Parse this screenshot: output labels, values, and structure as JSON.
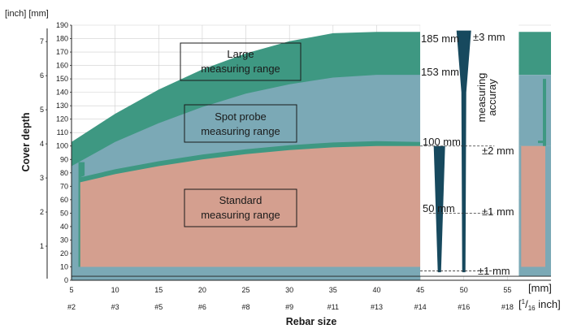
{
  "chart_data": {
    "type": "area",
    "xlabel": "Rebar size",
    "ylabel": "Cover depth",
    "y_unit_label": "[inch] [mm]",
    "x_unit_mm": "[mm]",
    "x_unit_inch_pre": "[",
    "x_unit_inch_sup": "1",
    "x_unit_inch_mid": "/",
    "x_unit_inch_sub": "16",
    "x_unit_inch_post": " inch]",
    "xlim": [
      5,
      60
    ],
    "ylim": [
      0,
      190
    ],
    "x_ticks_mm": [
      "5",
      "10",
      "15",
      "20",
      "25",
      "30",
      "35",
      "40",
      "45",
      "50",
      "55"
    ],
    "x_ticks_rebar": [
      "#2",
      "#3",
      "#5",
      "#6",
      "#8",
      "#9",
      "#11",
      "#13",
      "#14",
      "#16",
      "#18"
    ],
    "y_ticks_mm": [
      "0",
      "10",
      "20",
      "30",
      "40",
      "50",
      "60",
      "70",
      "80",
      "90",
      "100",
      "110",
      "120",
      "130",
      "140",
      "150",
      "160",
      "170",
      "180",
      "190"
    ],
    "y_ticks_inch": [
      "1",
      "2",
      "3",
      "4",
      "5",
      "6",
      "7"
    ],
    "grid": true,
    "colors": {
      "large": "#3e9882",
      "spot": "#7ba9b6",
      "standard": "#d49f8f",
      "bottom_band": "#7ba9b6",
      "marker": "#17495e",
      "grid": "#cfcfcf"
    },
    "series": [
      {
        "name": "Large measuring range",
        "x": [
          5,
          10,
          15,
          20,
          25,
          30,
          35,
          40
        ],
        "values": [
          103,
          124,
          142,
          157,
          169,
          178,
          184,
          185
        ]
      },
      {
        "name": "Spot probe measuring range",
        "x": [
          5,
          10,
          15,
          20,
          25,
          30,
          35,
          40
        ],
        "values": [
          85,
          103,
          117,
          129,
          139,
          146,
          151,
          153
        ]
      },
      {
        "name": "Standard measuring range",
        "x": [
          6,
          10,
          15,
          20,
          25,
          30,
          35,
          40
        ],
        "values": [
          73,
          79,
          85,
          90,
          94,
          97,
          99,
          100
        ]
      }
    ],
    "region_labels": {
      "large": [
        "Large",
        "measuring range"
      ],
      "spot": [
        "Spot probe",
        "measuring range"
      ],
      "standard": [
        "Standard",
        "measuring range"
      ]
    },
    "depth_labels": [
      {
        "text": "185 mm",
        "y": 185
      },
      {
        "text": "153 mm",
        "y": 153
      },
      {
        "text": "100 mm",
        "y": 100
      },
      {
        "text": "50 mm",
        "y": 50
      }
    ],
    "accuracy_labels": [
      {
        "text": "±3 mm",
        "y": 185
      },
      {
        "text": "±2 mm",
        "y": 95
      },
      {
        "text": "±1 mm",
        "y": 50
      },
      {
        "text": "±1 mm",
        "y": 7
      }
    ],
    "accuracy_title": [
      "measuring",
      "accuray"
    ]
  }
}
